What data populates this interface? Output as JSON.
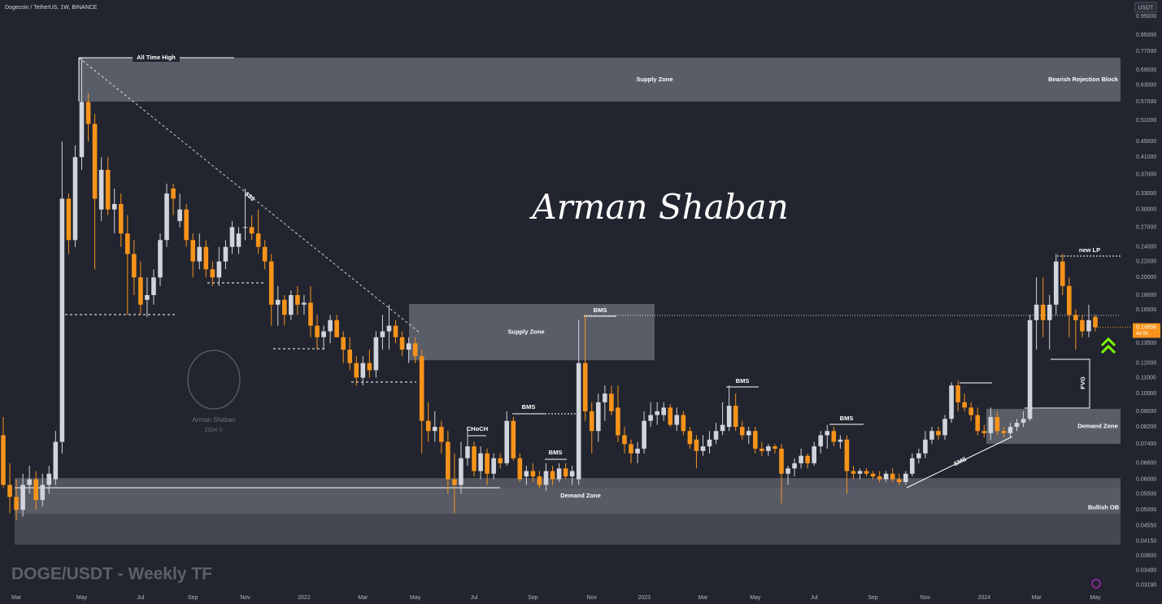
{
  "chart_data": {
    "type": "candlestick",
    "title": "DOGE/USDT - Weekly TF",
    "header": "Dogecoin / TetherUS, 1W, BINANCE",
    "currency": "USDT",
    "yscale": "log",
    "grid": false,
    "up_color": "#d1d4dc",
    "down_color": "#f7931a",
    "ylim": [
      0.0311,
      1.047
    ],
    "yticks": [
      {
        "value": 0.95,
        "label": "0.95000"
      },
      {
        "value": 0.85,
        "label": "0.85000"
      },
      {
        "value": 0.77,
        "label": "0.77000"
      },
      {
        "value": 0.69,
        "label": "0.69000"
      },
      {
        "value": 0.63,
        "label": "0.63000"
      },
      {
        "value": 0.57,
        "label": "0.57000"
      },
      {
        "value": 0.51,
        "label": "0.51000"
      },
      {
        "value": 0.45,
        "label": "0.45000"
      },
      {
        "value": 0.41,
        "label": "0.41000"
      },
      {
        "value": 0.37,
        "label": "0.37000"
      },
      {
        "value": 0.33,
        "label": "0.33000"
      },
      {
        "value": 0.3,
        "label": "0.30000"
      },
      {
        "value": 0.27,
        "label": "0.27000"
      },
      {
        "value": 0.24,
        "label": "0.24000"
      },
      {
        "value": 0.22,
        "label": "0.22000"
      },
      {
        "value": 0.2,
        "label": "0.20000"
      },
      {
        "value": 0.18,
        "label": "0.18000"
      },
      {
        "value": 0.165,
        "label": "0.16500"
      },
      {
        "value": 0.135,
        "label": "0.13500"
      },
      {
        "value": 0.12,
        "label": "0.12000"
      },
      {
        "value": 0.11,
        "label": "0.11000"
      },
      {
        "value": 0.1,
        "label": "0.10000"
      },
      {
        "value": 0.09,
        "label": "0.09000"
      },
      {
        "value": 0.082,
        "label": "0.08200"
      },
      {
        "value": 0.074,
        "label": "0.07400"
      },
      {
        "value": 0.066,
        "label": "0.06600"
      },
      {
        "value": 0.06,
        "label": "0.06000"
      },
      {
        "value": 0.055,
        "label": "0.05500"
      },
      {
        "value": 0.05,
        "label": "0.05000"
      },
      {
        "value": 0.0455,
        "label": "0.04550"
      },
      {
        "value": 0.0415,
        "label": "0.04150"
      },
      {
        "value": 0.038,
        "label": "0.03800"
      },
      {
        "value": 0.0348,
        "label": "0.03480"
      },
      {
        "value": 0.0319,
        "label": "0.03190"
      }
    ],
    "categories": [
      null,
      null,
      "Mar",
      null,
      null,
      null,
      null,
      null,
      null,
      null,
      null,
      null,
      "May",
      null,
      null,
      null,
      null,
      null,
      null,
      null,
      null,
      "Jul",
      null,
      null,
      null,
      null,
      null,
      null,
      null,
      "Sep",
      null,
      null,
      null,
      null,
      null,
      null,
      null,
      "Nov",
      null,
      null,
      null,
      null,
      null,
      null,
      null,
      null,
      "2022",
      null,
      null,
      null,
      null,
      null,
      null,
      null,
      null,
      "Mar",
      null,
      null,
      null,
      null,
      null,
      null,
      null,
      "May",
      null,
      null,
      null,
      null,
      null,
      null,
      null,
      null,
      "Jul",
      null,
      null,
      null,
      null,
      null,
      null,
      null,
      null,
      "Sep",
      null,
      null,
      null,
      null,
      null,
      null,
      null,
      null,
      "Nov",
      null,
      null,
      null,
      null,
      null,
      null,
      null,
      "2023",
      null,
      null,
      null,
      null,
      null,
      null,
      null,
      null,
      "Mar",
      null,
      null,
      null,
      null,
      null,
      null,
      null,
      "May",
      null,
      null,
      null,
      null,
      null,
      null,
      null,
      null,
      "Jul",
      null,
      null,
      null,
      null,
      null,
      null,
      null,
      null,
      "Sep",
      null,
      null,
      null,
      null,
      null,
      null,
      null,
      "Nov",
      null,
      null,
      null,
      null,
      null,
      null,
      null,
      null,
      "2024",
      null,
      null,
      null,
      null,
      null,
      null,
      null,
      "Mar",
      null,
      null,
      null,
      null,
      null,
      null,
      null,
      null,
      "May"
    ],
    "ohlc": [
      [
        0.078,
        0.087,
        0.057,
        0.058
      ],
      [
        0.058,
        0.066,
        0.049,
        0.054
      ],
      [
        0.054,
        0.06,
        0.047,
        0.05
      ],
      [
        0.05,
        0.062,
        0.048,
        0.058
      ],
      [
        0.058,
        0.065,
        0.055,
        0.06
      ],
      [
        0.06,
        0.063,
        0.05,
        0.053
      ],
      [
        0.053,
        0.062,
        0.051,
        0.058
      ],
      [
        0.058,
        0.065,
        0.055,
        0.062
      ],
      [
        0.06,
        0.08,
        0.058,
        0.075
      ],
      [
        0.075,
        0.45,
        0.07,
        0.32
      ],
      [
        0.32,
        0.33,
        0.23,
        0.25
      ],
      [
        0.25,
        0.44,
        0.24,
        0.41
      ],
      [
        0.41,
        0.74,
        0.38,
        0.57
      ],
      [
        0.57,
        0.6,
        0.45,
        0.5
      ],
      [
        0.5,
        0.53,
        0.21,
        0.32
      ],
      [
        0.3,
        0.41,
        0.28,
        0.38
      ],
      [
        0.38,
        0.41,
        0.29,
        0.3
      ],
      [
        0.3,
        0.34,
        0.26,
        0.31
      ],
      [
        0.31,
        0.33,
        0.24,
        0.26
      ],
      [
        0.26,
        0.29,
        0.16,
        0.23
      ],
      [
        0.23,
        0.25,
        0.18,
        0.2
      ],
      [
        0.2,
        0.22,
        0.16,
        0.17
      ],
      [
        0.175,
        0.2,
        0.158,
        0.18
      ],
      [
        0.18,
        0.21,
        0.17,
        0.2
      ],
      [
        0.2,
        0.26,
        0.19,
        0.25
      ],
      [
        0.25,
        0.35,
        0.24,
        0.33
      ],
      [
        0.34,
        0.35,
        0.29,
        0.32
      ],
      [
        0.28,
        0.33,
        0.27,
        0.3
      ],
      [
        0.3,
        0.31,
        0.24,
        0.25
      ],
      [
        0.25,
        0.26,
        0.2,
        0.22
      ],
      [
        0.22,
        0.26,
        0.21,
        0.24
      ],
      [
        0.24,
        0.25,
        0.2,
        0.21
      ],
      [
        0.21,
        0.22,
        0.19,
        0.2
      ],
      [
        0.2,
        0.24,
        0.19,
        0.22
      ],
      [
        0.22,
        0.25,
        0.21,
        0.24
      ],
      [
        0.24,
        0.28,
        0.23,
        0.27
      ],
      [
        0.24,
        0.27,
        0.23,
        0.26
      ],
      [
        0.27,
        0.34,
        0.25,
        0.27
      ],
      [
        0.27,
        0.29,
        0.25,
        0.26
      ],
      [
        0.26,
        0.3,
        0.23,
        0.24
      ],
      [
        0.24,
        0.25,
        0.21,
        0.22
      ],
      [
        0.22,
        0.23,
        0.15,
        0.17
      ],
      [
        0.17,
        0.19,
        0.15,
        0.175
      ],
      [
        0.175,
        0.18,
        0.15,
        0.16
      ],
      [
        0.16,
        0.185,
        0.155,
        0.18
      ],
      [
        0.18,
        0.19,
        0.16,
        0.17
      ],
      [
        0.17,
        0.18,
        0.16,
        0.172
      ],
      [
        0.172,
        0.19,
        0.14,
        0.15
      ],
      [
        0.15,
        0.16,
        0.13,
        0.14
      ],
      [
        0.14,
        0.15,
        0.13,
        0.145
      ],
      [
        0.145,
        0.16,
        0.135,
        0.155
      ],
      [
        0.155,
        0.16,
        0.14,
        0.14
      ],
      [
        0.14,
        0.145,
        0.12,
        0.13
      ],
      [
        0.13,
        0.14,
        0.115,
        0.12
      ],
      [
        0.12,
        0.125,
        0.105,
        0.11
      ],
      [
        0.11,
        0.125,
        0.105,
        0.12
      ],
      [
        0.12,
        0.13,
        0.11,
        0.115
      ],
      [
        0.115,
        0.145,
        0.11,
        0.14
      ],
      [
        0.14,
        0.16,
        0.13,
        0.145
      ],
      [
        0.145,
        0.17,
        0.13,
        0.15
      ],
      [
        0.15,
        0.155,
        0.135,
        0.14
      ],
      [
        0.14,
        0.145,
        0.125,
        0.13
      ],
      [
        0.13,
        0.14,
        0.12,
        0.135
      ],
      [
        0.135,
        0.14,
        0.12,
        0.125
      ],
      [
        0.125,
        0.13,
        0.07,
        0.085
      ],
      [
        0.085,
        0.095,
        0.075,
        0.08
      ],
      [
        0.08,
        0.09,
        0.075,
        0.082
      ],
      [
        0.082,
        0.085,
        0.07,
        0.075
      ],
      [
        0.075,
        0.08,
        0.055,
        0.06
      ],
      [
        0.06,
        0.07,
        0.049,
        0.058
      ],
      [
        0.058,
        0.075,
        0.055,
        0.068
      ],
      [
        0.068,
        0.082,
        0.065,
        0.073
      ],
      [
        0.073,
        0.075,
        0.061,
        0.063
      ],
      [
        0.063,
        0.073,
        0.06,
        0.07
      ],
      [
        0.07,
        0.072,
        0.058,
        0.062
      ],
      [
        0.062,
        0.07,
        0.06,
        0.068
      ],
      [
        0.068,
        0.07,
        0.064,
        0.066
      ],
      [
        0.066,
        0.09,
        0.065,
        0.085
      ],
      [
        0.085,
        0.087,
        0.067,
        0.068
      ],
      [
        0.068,
        0.07,
        0.059,
        0.06
      ],
      [
        0.061,
        0.065,
        0.058,
        0.063
      ],
      [
        0.063,
        0.066,
        0.059,
        0.061
      ],
      [
        0.061,
        0.063,
        0.057,
        0.058
      ],
      [
        0.058,
        0.066,
        0.056,
        0.063
      ],
      [
        0.063,
        0.065,
        0.058,
        0.06
      ],
      [
        0.06,
        0.066,
        0.059,
        0.064
      ],
      [
        0.064,
        0.066,
        0.06,
        0.061
      ],
      [
        0.061,
        0.065,
        0.058,
        0.063
      ],
      [
        0.06,
        0.155,
        0.058,
        0.12
      ],
      [
        0.12,
        0.16,
        0.085,
        0.09
      ],
      [
        0.09,
        0.095,
        0.07,
        0.08
      ],
      [
        0.08,
        0.1,
        0.075,
        0.095
      ],
      [
        0.095,
        0.105,
        0.085,
        0.1
      ],
      [
        0.1,
        0.105,
        0.088,
        0.09
      ],
      [
        0.092,
        0.105,
        0.075,
        0.078
      ],
      [
        0.078,
        0.082,
        0.07,
        0.074
      ],
      [
        0.074,
        0.076,
        0.066,
        0.07
      ],
      [
        0.07,
        0.075,
        0.066,
        0.072
      ],
      [
        0.072,
        0.09,
        0.07,
        0.085
      ],
      [
        0.085,
        0.095,
        0.082,
        0.088
      ],
      [
        0.088,
        0.095,
        0.083,
        0.09
      ],
      [
        0.088,
        0.095,
        0.085,
        0.092
      ],
      [
        0.092,
        0.094,
        0.082,
        0.083
      ],
      [
        0.083,
        0.092,
        0.08,
        0.088
      ],
      [
        0.088,
        0.09,
        0.078,
        0.08
      ],
      [
        0.08,
        0.082,
        0.072,
        0.074
      ],
      [
        0.076,
        0.078,
        0.064,
        0.071
      ],
      [
        0.071,
        0.078,
        0.069,
        0.073
      ],
      [
        0.073,
        0.08,
        0.07,
        0.076
      ],
      [
        0.076,
        0.084,
        0.074,
        0.08
      ],
      [
        0.08,
        0.095,
        0.078,
        0.083
      ],
      [
        0.082,
        0.105,
        0.08,
        0.093
      ],
      [
        0.093,
        0.1,
        0.08,
        0.082
      ],
      [
        0.082,
        0.085,
        0.076,
        0.078
      ],
      [
        0.078,
        0.082,
        0.074,
        0.08
      ],
      [
        0.08,
        0.082,
        0.07,
        0.072
      ],
      [
        0.072,
        0.075,
        0.069,
        0.071
      ],
      [
        0.071,
        0.074,
        0.069,
        0.073
      ],
      [
        0.073,
        0.074,
        0.07,
        0.072
      ],
      [
        0.072,
        0.074,
        0.052,
        0.062
      ],
      [
        0.062,
        0.065,
        0.058,
        0.064
      ],
      [
        0.064,
        0.068,
        0.061,
        0.066
      ],
      [
        0.066,
        0.072,
        0.064,
        0.069
      ],
      [
        0.069,
        0.07,
        0.064,
        0.066
      ],
      [
        0.066,
        0.075,
        0.065,
        0.073
      ],
      [
        0.073,
        0.08,
        0.07,
        0.078
      ],
      [
        0.078,
        0.083,
        0.072,
        0.08
      ],
      [
        0.08,
        0.082,
        0.073,
        0.075
      ],
      [
        0.075,
        0.078,
        0.072,
        0.076
      ],
      [
        0.076,
        0.078,
        0.055,
        0.063
      ],
      [
        0.063,
        0.065,
        0.06,
        0.062
      ],
      [
        0.062,
        0.064,
        0.06,
        0.063
      ],
      [
        0.063,
        0.064,
        0.061,
        0.062
      ],
      [
        0.062,
        0.063,
        0.06,
        0.061
      ],
      [
        0.061,
        0.063,
        0.059,
        0.06
      ],
      [
        0.06,
        0.063,
        0.059,
        0.062
      ],
      [
        0.062,
        0.064,
        0.059,
        0.06
      ],
      [
        0.06,
        0.062,
        0.058,
        0.059
      ],
      [
        0.059,
        0.063,
        0.058,
        0.062
      ],
      [
        0.062,
        0.07,
        0.061,
        0.068
      ],
      [
        0.068,
        0.072,
        0.066,
        0.07
      ],
      [
        0.07,
        0.08,
        0.068,
        0.076
      ],
      [
        0.076,
        0.082,
        0.074,
        0.08
      ],
      [
        0.08,
        0.082,
        0.076,
        0.078
      ],
      [
        0.078,
        0.088,
        0.076,
        0.086
      ],
      [
        0.086,
        0.107,
        0.084,
        0.105
      ],
      [
        0.105,
        0.108,
        0.09,
        0.095
      ],
      [
        0.095,
        0.1,
        0.09,
        0.092
      ],
      [
        0.092,
        0.095,
        0.085,
        0.088
      ],
      [
        0.088,
        0.092,
        0.078,
        0.08
      ],
      [
        0.08,
        0.083,
        0.077,
        0.079
      ],
      [
        0.079,
        0.092,
        0.076,
        0.087
      ],
      [
        0.087,
        0.09,
        0.078,
        0.08
      ],
      [
        0.08,
        0.082,
        0.077,
        0.079
      ],
      [
        0.079,
        0.084,
        0.077,
        0.082
      ],
      [
        0.082,
        0.086,
        0.08,
        0.084
      ],
      [
        0.084,
        0.09,
        0.082,
        0.086
      ],
      [
        0.086,
        0.16,
        0.085,
        0.155
      ],
      [
        0.155,
        0.2,
        0.13,
        0.17
      ],
      [
        0.17,
        0.2,
        0.14,
        0.155
      ],
      [
        0.155,
        0.18,
        0.13,
        0.17
      ],
      [
        0.17,
        0.23,
        0.16,
        0.22
      ],
      [
        0.22,
        0.23,
        0.18,
        0.19
      ],
      [
        0.19,
        0.2,
        0.14,
        0.16
      ],
      [
        0.16,
        0.165,
        0.13,
        0.155
      ],
      [
        0.155,
        0.16,
        0.14,
        0.145
      ],
      [
        0.145,
        0.17,
        0.14,
        0.155
      ],
      [
        0.158,
        0.16,
        0.145,
        0.14856
      ]
    ],
    "zones": [
      {
        "label": "Supply Zone",
        "top": 0.742,
        "bottom": 0.571
      },
      {
        "label": "Supply Zone",
        "top": 0.1707,
        "bottom": 0.122
      },
      {
        "label": "Demand Zone",
        "top": 0.0604,
        "bottom": 0.0488
      },
      {
        "label": "Bullish OB",
        "top": 0.057,
        "bottom": 0.0406
      },
      {
        "label": "Demand Zone",
        "top": 0.0913,
        "bottom": 0.0741
      }
    ],
    "annotations": {
      "ath": "All Time High",
      "bearish_block": "Bearish Rejection Block",
      "sss": "$$$",
      "bms": [
        "BMS",
        "BMS",
        "BMS",
        "BMS",
        "BMS"
      ],
      "choch": "CHoCH",
      "sms": "SMS",
      "fvg": "FVG",
      "new_lp": "new LP",
      "signature": "Arman Shaban",
      "watermark": "Arman Shaban",
      "watermark_year": "2024 ©",
      "countdown": "4d 5h"
    }
  }
}
